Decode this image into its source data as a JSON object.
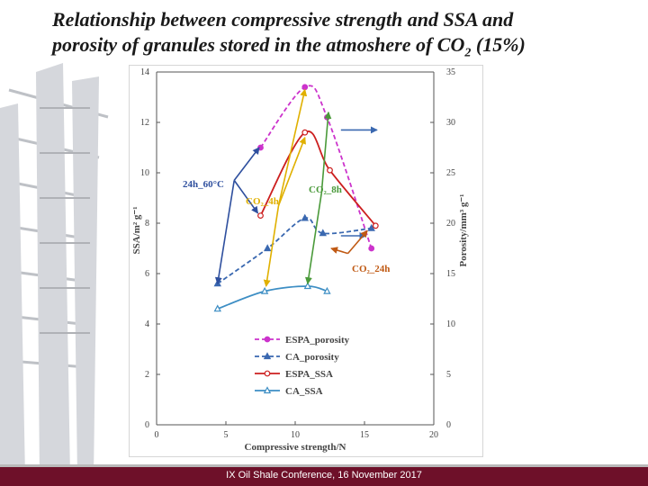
{
  "slide": {
    "title_line1": "Relationship between compressive strength and SSA and",
    "title_line2": "porosity of granules stored in the atmoshere of CO",
    "title_sub": "2",
    "title_end": " (15%)",
    "footer": "IX Oil Shale Conference, 16 November 2017"
  },
  "chart_data": {
    "type": "line",
    "xlabel": "Compressive strength/N",
    "ylabel_left": "SSA/m² g⁻¹",
    "ylabel_right": "Porosity/mm³ g⁻¹",
    "xlim": [
      0,
      20
    ],
    "ylim_left": [
      0,
      14
    ],
    "ylim_right": [
      0,
      35
    ],
    "x_ticks": [
      "0",
      "5",
      "10",
      "15",
      "20"
    ],
    "y_ticks_left": [
      "0",
      "2",
      "4",
      "6",
      "8",
      "10",
      "12",
      "14"
    ],
    "y_ticks_right": [
      "0",
      "5",
      "10",
      "15",
      "20",
      "25",
      "30",
      "35"
    ],
    "grid": false,
    "legend_position": "bottom-center",
    "series": [
      {
        "name": "ESPA_porosity",
        "axis": "right",
        "color": "#cc33cc",
        "dash": true,
        "marker": "circle",
        "points": [
          [
            7.5,
            27.5
          ],
          [
            10.7,
            33.5
          ],
          [
            12.3,
            30.5
          ],
          [
            15.5,
            17.5
          ]
        ]
      },
      {
        "name": "CA_porosity",
        "axis": "right",
        "color": "#3a68b0",
        "dash": true,
        "marker": "triangle",
        "points": [
          [
            4.4,
            14.0
          ],
          [
            8.0,
            17.5
          ],
          [
            10.7,
            20.5
          ],
          [
            12.0,
            19.0
          ],
          [
            15.5,
            19.5
          ]
        ]
      },
      {
        "name": "ESPA_SSA",
        "axis": "left",
        "color": "#cc1f1f",
        "dash": false,
        "marker": "circle-open",
        "points": [
          [
            7.5,
            8.3
          ],
          [
            10.7,
            11.6
          ],
          [
            12.5,
            10.1
          ],
          [
            15.8,
            7.9
          ]
        ]
      },
      {
        "name": "CA_SSA",
        "axis": "left",
        "color": "#3d8ec4",
        "dash": false,
        "marker": "triangle-open",
        "points": [
          [
            4.4,
            4.6
          ],
          [
            7.8,
            5.3
          ],
          [
            10.9,
            5.5
          ],
          [
            12.3,
            5.3
          ]
        ]
      }
    ],
    "annotations": [
      {
        "text": "24h_60°C",
        "color": "#2e4f9e"
      },
      {
        "text": "CO₂_4h",
        "color": "#e0b000"
      },
      {
        "text": "CO₂_8h",
        "color": "#4a9a3a"
      },
      {
        "text": "CO₂_24h",
        "color": "#c05a14"
      }
    ],
    "arrows": [
      {
        "color": "#2e4f9e",
        "from": [
          5.6,
          9.7
        ],
        "to": [
          4.4,
          5.6
        ]
      },
      {
        "color": "#2e4f9e",
        "from": [
          5.6,
          9.7
        ],
        "to": [
          7.4,
          11.0
        ]
      },
      {
        "color": "#2e4f9e",
        "from": [
          5.6,
          9.7
        ],
        "to": [
          7.3,
          8.4
        ]
      },
      {
        "color": "#e0b000",
        "from": [
          8.8,
          8.7
        ],
        "to": [
          10.7,
          13.3
        ]
      },
      {
        "color": "#e0b000",
        "from": [
          8.8,
          8.7
        ],
        "to": [
          10.7,
          11.4
        ]
      },
      {
        "color": "#e0b000",
        "from": [
          8.8,
          8.7
        ],
        "to": [
          7.9,
          5.5
        ]
      },
      {
        "color": "#4a9a3a",
        "from": [
          11.9,
          9.2
        ],
        "to": [
          12.4,
          12.4
        ]
      },
      {
        "color": "#4a9a3a",
        "from": [
          11.9,
          9.2
        ],
        "to": [
          10.9,
          5.6
        ]
      },
      {
        "color": "#3a68b0",
        "from": [
          13.3,
          11.7
        ],
        "to": [
          15.9,
          11.7
        ]
      },
      {
        "color": "#3a68b0",
        "from": [
          13.3,
          7.5
        ],
        "to": [
          15.1,
          7.5
        ]
      },
      {
        "color": "#c05a14",
        "from": [
          13.8,
          6.8
        ],
        "to": [
          15.2,
          7.7
        ]
      },
      {
        "color": "#c05a14",
        "from": [
          13.8,
          6.8
        ],
        "to": [
          12.6,
          7.0
        ]
      }
    ]
  }
}
